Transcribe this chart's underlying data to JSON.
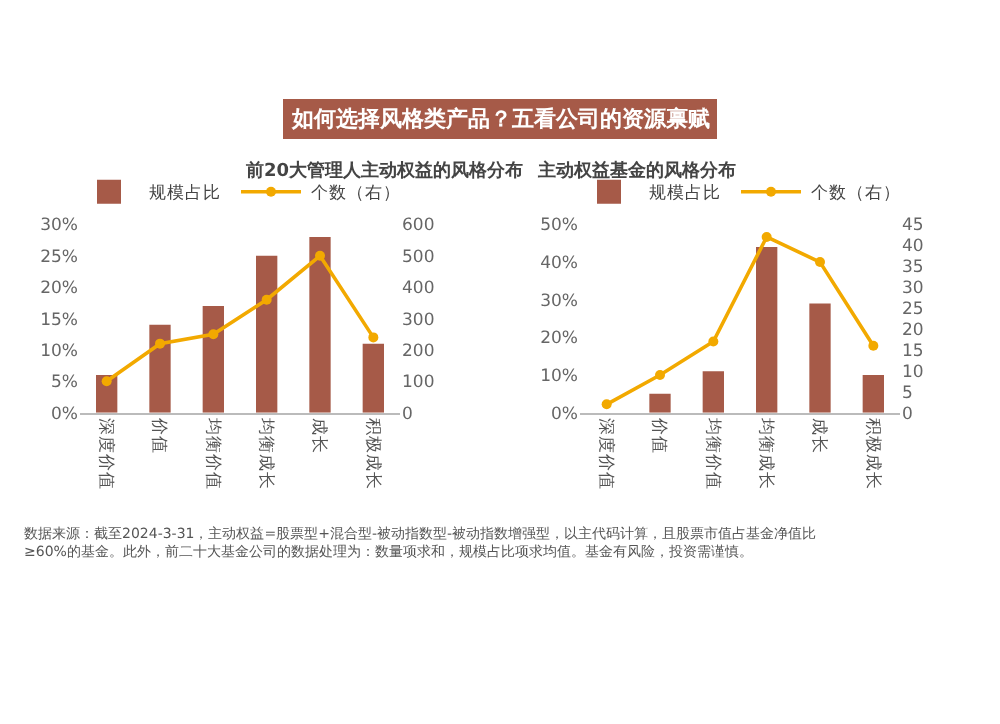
{
  "chart_data": [
    {
      "type": "bar",
      "title": "前20大管理人主动权益的风格分布",
      "annotations": [
        "如何选择风格类产品？五看公司的资源禀赋"
      ],
      "categories": [
        "深度价值",
        "价值",
        "均衡价值",
        "均衡成长",
        "成长",
        "积极成长"
      ],
      "series": [
        {
          "name": "规模占比",
          "color": "#a65a48",
          "values": [
            6,
            14,
            17,
            25,
            28,
            11
          ]
        },
        {
          "name": "个数（右）",
          "type": "line",
          "axis": "y2",
          "color": "#f2a900",
          "values": [
            100,
            220,
            250,
            360,
            500,
            240
          ]
        }
      ],
      "ylim": [
        0,
        30
      ],
      "yticks": [
        {
          "value": 0,
          "label": "0%"
        },
        {
          "value": 5,
          "label": "5%"
        },
        {
          "value": 10,
          "label": "10%"
        },
        {
          "value": 15,
          "label": "15%"
        },
        {
          "value": 20,
          "label": "20%"
        },
        {
          "value": 25,
          "label": "25%"
        },
        {
          "value": 30,
          "label": "30%"
        }
      ],
      "y2lim": [
        0,
        600
      ],
      "y2ticks": [
        0,
        100,
        200,
        300,
        400,
        500,
        600
      ],
      "legend": "top",
      "grid": false,
      "marker": "circle"
    },
    {
      "type": "bar",
      "title": "主动权益基金的风格分布",
      "annotations": [
        "数据来源：截至2024-3-31，主动权益=股票型+混合型-被动指数型-被动指数增强型，以主代码计算，且股票市值占基金净值比≥60%的基金。此外，前二十大基金公司的数据处理为：数量项求和，规模占比项求均值。基金有风险，投资需谨慎。"
      ],
      "categories": [
        "深度价值",
        "价值",
        "均衡价值",
        "均衡成长",
        "成长",
        "积极成长"
      ],
      "series": [
        {
          "name": "规模占比",
          "color": "#a65a48",
          "values": [
            0,
            5,
            11,
            44,
            29,
            10
          ]
        },
        {
          "name": "个数（右）",
          "type": "line",
          "axis": "y2",
          "color": "#f2a900",
          "values": [
            2,
            9,
            17,
            42,
            36,
            16
          ]
        }
      ],
      "ylim": [
        0,
        50
      ],
      "yticks": [
        {
          "value": 0,
          "label": "0%"
        },
        {
          "value": 10,
          "label": "10%"
        },
        {
          "value": 20,
          "label": "20%"
        },
        {
          "value": 30,
          "label": "30%"
        },
        {
          "value": 40,
          "label": "40%"
        },
        {
          "value": 50,
          "label": "50%"
        }
      ],
      "y2lim": [
        0,
        45
      ],
      "y2ticks": [
        0,
        5,
        10,
        15,
        20,
        25,
        30,
        35,
        40,
        45
      ],
      "legend": "top",
      "grid": false,
      "marker": "circle"
    }
  ]
}
